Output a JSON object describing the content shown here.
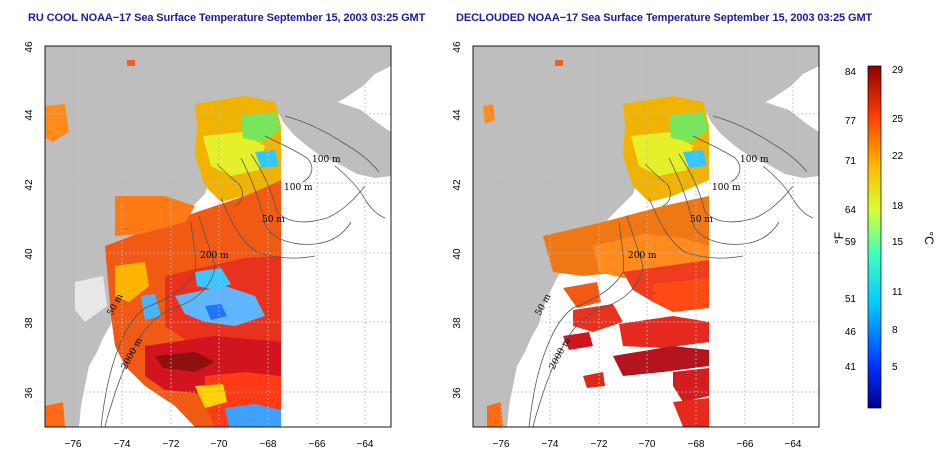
{
  "titles": {
    "left": "RU COOL NOAA−17 Sea Surface Temperature September 15, 2003 03:25 GMT",
    "right": "DECLOUDED NOAA−17 Sea Surface Temperature September 15, 2003 03:25 GMT"
  },
  "axes": {
    "x_ticks": [
      "−76",
      "−74",
      "−72",
      "−70",
      "−68",
      "−66",
      "−64"
    ],
    "y_ticks": [
      "36",
      "38",
      "40",
      "42",
      "44",
      "46"
    ]
  },
  "contour_labels": {
    "c100a": "100 m",
    "c100b": "100 m",
    "c50": "50 m",
    "c200": "200 m",
    "c50b": "50 m",
    "c2000": "2000 m"
  },
  "colorbar": {
    "fahrenheit_ticks": [
      "84",
      "77",
      "71",
      "64",
      "59",
      "51",
      "46",
      "41"
    ],
    "celsius_ticks": [
      "29",
      "25",
      "22",
      "18",
      "15",
      "11",
      "8",
      "5"
    ],
    "unit_f": "°F",
    "unit_c": "°C",
    "colors": [
      "#00008f",
      "#0040ff",
      "#00bfff",
      "#40ffbf",
      "#bfff40",
      "#ffbf00",
      "#ff4000",
      "#8f0000"
    ]
  },
  "colors": {
    "land": "#bebebe",
    "ocean": "#ffffff",
    "grid": "#b0b0b0",
    "title": "#1c1c9c"
  }
}
